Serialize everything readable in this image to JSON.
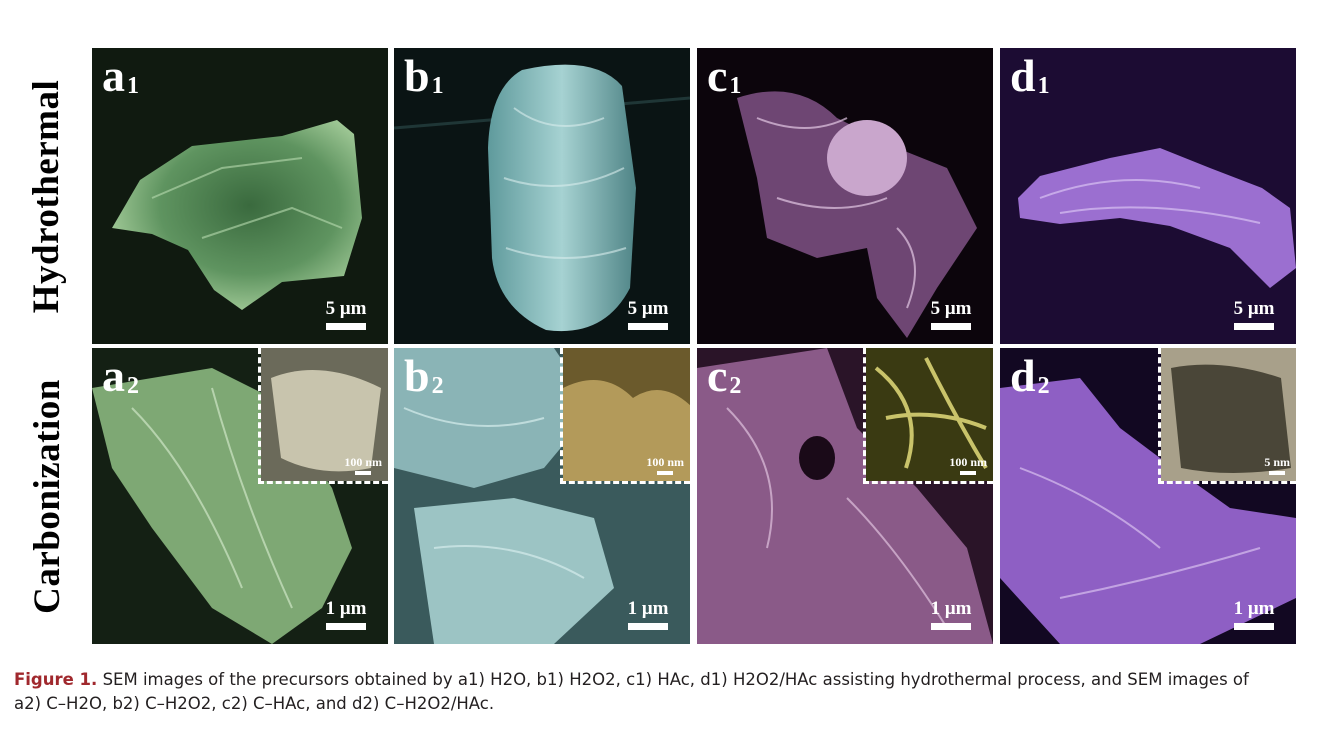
{
  "rows": {
    "top_label": "Hydrothermal",
    "bottom_label": "Carbonization"
  },
  "panels": {
    "a1": {
      "letter": "a",
      "sub": "1",
      "scale": "5 μm"
    },
    "b1": {
      "letter": "b",
      "sub": "1",
      "scale": "5 μm"
    },
    "c1": {
      "letter": "c",
      "sub": "1",
      "scale": "5 μm"
    },
    "d1": {
      "letter": "d",
      "sub": "1",
      "scale": "5 μm"
    },
    "a2": {
      "letter": "a",
      "sub": "2",
      "scale": "1 μm",
      "inset_scale": "100 nm"
    },
    "b2": {
      "letter": "b",
      "sub": "2",
      "scale": "1 μm",
      "inset_scale": "100 nm"
    },
    "c2": {
      "letter": "c",
      "sub": "2",
      "scale": "1 μm",
      "inset_scale": "100 nm"
    },
    "d2": {
      "letter": "d",
      "sub": "2",
      "scale": "1 μm",
      "inset_scale": "5 nm"
    }
  },
  "caption": {
    "label": "Figure 1.",
    "line1": "SEM images of the precursors obtained by a1) H2O, b1) H2O2, c1) HAc, d1) H2O2/HAc assisting hydrothermal process, and SEM images of",
    "line2": "a2) C–H2O, b2) C–H2O2, c2) C–HAc, and d2) C–H2O2/HAc."
  },
  "colors": {
    "a_tint": "#7ea874",
    "b_tint": "#7fb5b8",
    "c_tint": "#c9a0cf",
    "d_tint": "#9b6fd0",
    "caption_label": "#a0282d",
    "caption_text": "#231f20"
  }
}
